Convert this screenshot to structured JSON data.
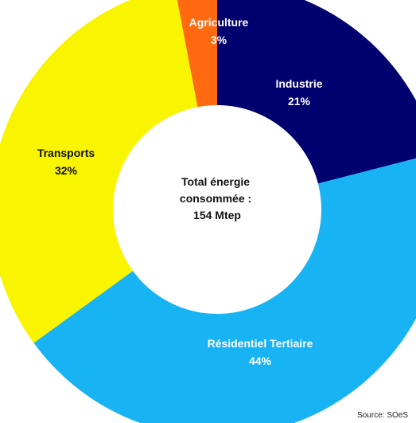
{
  "chart_data": {
    "type": "pie",
    "variant": "donut",
    "title": "",
    "center_text": [
      "Total énergie",
      "consommée :",
      "154 Mtep"
    ],
    "slices": [
      {
        "name": "Industrie",
        "value": 21,
        "label": "21%",
        "color": "#00006e",
        "text_color": "#ffffff"
      },
      {
        "name": "Résidentiel Tertiaire",
        "value": 44,
        "label": "44%",
        "color": "#17b3f2",
        "text_color": "#ffffff"
      },
      {
        "name": "Transports",
        "value": 32,
        "label": "32%",
        "color": "#f9f400",
        "text_color": "#111111"
      },
      {
        "name": "Agriculture",
        "value": 3,
        "label": "3%",
        "color": "#ff6a10",
        "text_color": "#ffffff"
      }
    ],
    "start": "12 o'clock",
    "direction": "clockwise",
    "legend": "none"
  },
  "source": "Source: SOeS"
}
